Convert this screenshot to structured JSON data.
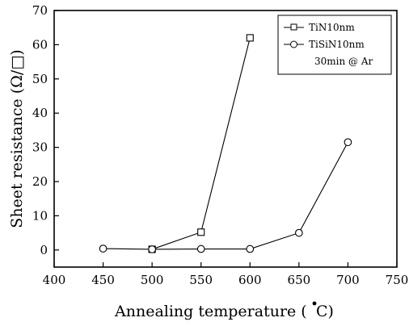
{
  "chart_data": {
    "type": "line",
    "title": "",
    "xlabel": "Annealing temperature (",
    "xlabel_unit": "C)",
    "ylabel": "Sheet resistance (Ω/□)",
    "xlim": [
      400,
      750
    ],
    "ylim": [
      -5,
      70
    ],
    "xticks": [
      400,
      450,
      500,
      550,
      600,
      650,
      700,
      750
    ],
    "yticks": [
      0,
      10,
      20,
      30,
      40,
      50,
      60,
      70
    ],
    "grid": false,
    "legend_position": "top-right",
    "legend_note": "30min @ Ar",
    "series": [
      {
        "name": "TiN10nm",
        "marker": "square",
        "color": "#000000",
        "x": [
          500,
          550,
          600
        ],
        "y": [
          0.2,
          5.2,
          62
        ]
      },
      {
        "name": "TiSiN10nm",
        "marker": "circle",
        "color": "#000000",
        "x": [
          450,
          500,
          550,
          600,
          650,
          700
        ],
        "y": [
          0.4,
          0.2,
          0.3,
          0.3,
          5,
          31.5
        ]
      }
    ]
  }
}
